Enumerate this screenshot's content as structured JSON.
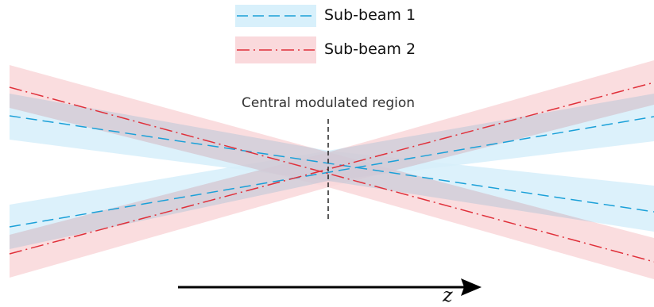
{
  "legend": {
    "items": [
      {
        "label": "Sub-beam 1",
        "color": "#1aa0d8",
        "fill": "#d8f0fb",
        "line_style": "dashed"
      },
      {
        "label": "Sub-beam 2",
        "color": "#e0303a",
        "fill": "#fad9dc",
        "line_style": "dash-dot"
      }
    ]
  },
  "annotation": {
    "central_region_label": "Central modulated region"
  },
  "axis": {
    "label": "z"
  },
  "colors": {
    "beam1_line": "#1aa0d8",
    "beam1_fill": "#d8f0fb",
    "beam2_line": "#e0303a",
    "beam2_fill": "#fad9dc",
    "marker_line": "#222222",
    "arrow": "#000000"
  }
}
